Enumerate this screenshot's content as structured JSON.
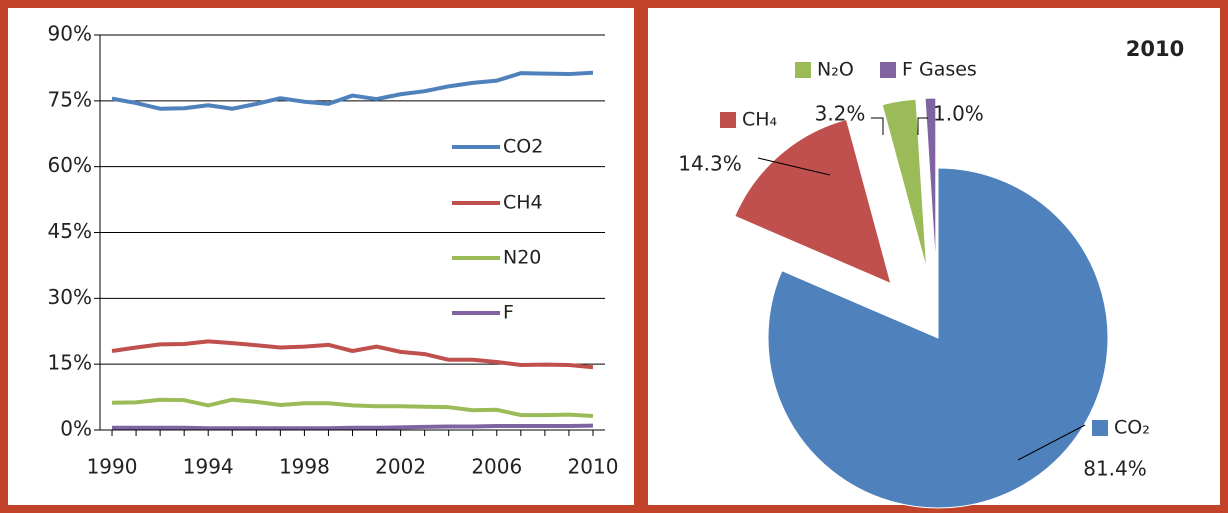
{
  "chart_data": [
    {
      "type": "line",
      "x": [
        1990,
        1991,
        1992,
        1993,
        1994,
        1995,
        1996,
        1997,
        1998,
        1999,
        2000,
        2001,
        2002,
        2003,
        2004,
        2005,
        2006,
        2007,
        2008,
        2009,
        2010
      ],
      "xlim": [
        1989.5,
        2010.5
      ],
      "xticks": [
        1990,
        1994,
        1998,
        2002,
        2006,
        2010
      ],
      "ylim": [
        0,
        90
      ],
      "yticks": [
        {
          "value": 0,
          "label": "0%"
        },
        {
          "value": 15,
          "label": "15%"
        },
        {
          "value": 30,
          "label": "30%"
        },
        {
          "value": 45,
          "label": "45%"
        },
        {
          "value": 60,
          "label": "60%"
        },
        {
          "value": 75,
          "label": "75%"
        },
        {
          "value": 90,
          "label": "90%"
        }
      ],
      "grid": true,
      "legend": "right",
      "series": [
        {
          "name": "CO2",
          "color": "#4f81bd",
          "values": [
            75.5,
            74.5,
            73.2,
            73.3,
            74,
            73.2,
            74.3,
            75.6,
            74.8,
            74.3,
            76.2,
            75.4,
            76.5,
            77.2,
            78.3,
            79.1,
            79.6,
            81.3,
            81.2,
            81.1,
            81.4
          ]
        },
        {
          "name": "CH4",
          "color": "#c0504d",
          "values": [
            18,
            18.8,
            19.5,
            19.6,
            20.2,
            19.8,
            19.3,
            18.8,
            19,
            19.4,
            18,
            19,
            17.8,
            17.3,
            16,
            16,
            15.5,
            14.8,
            14.9,
            14.8,
            14.3
          ]
        },
        {
          "name": "N20",
          "color": "#9bbb59",
          "values": [
            6.2,
            6.3,
            6.9,
            6.8,
            5.6,
            6.9,
            6.4,
            5.7,
            6.1,
            6.1,
            5.6,
            5.4,
            5.4,
            5.3,
            5.2,
            4.5,
            4.6,
            3.4,
            3.4,
            3.5,
            3.2
          ]
        },
        {
          "name": "F",
          "color": "#8064a2",
          "values": [
            0.5,
            0.5,
            0.5,
            0.5,
            0.4,
            0.4,
            0.4,
            0.4,
            0.4,
            0.4,
            0.5,
            0.5,
            0.6,
            0.7,
            0.8,
            0.8,
            0.9,
            0.9,
            0.9,
            0.9,
            1.0
          ]
        }
      ]
    },
    {
      "type": "pie",
      "title": "2010",
      "categories": [
        "CO₂",
        "CH₄",
        "N₂O",
        "F Gases"
      ],
      "values": [
        81.4,
        14.3,
        3.2,
        1.0
      ],
      "value_labels": [
        "81.4%",
        "14.3%",
        "3.2%",
        "1.0%"
      ],
      "colors": [
        "#4f81bd",
        "#c0504d",
        "#9bbb59",
        "#8064a2"
      ]
    }
  ]
}
